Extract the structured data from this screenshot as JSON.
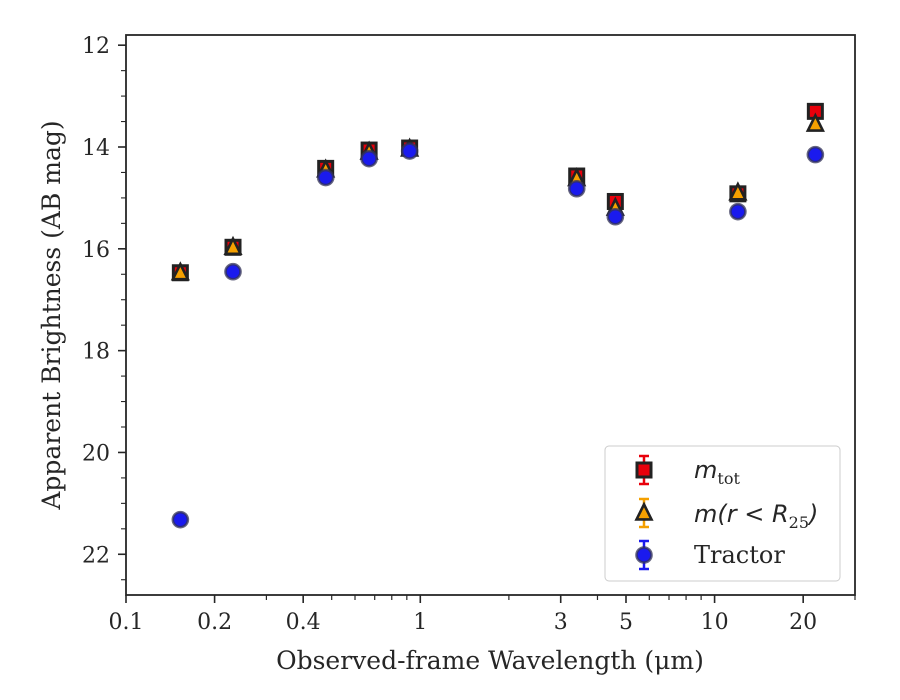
{
  "chart_data": {
    "type": "scatter",
    "xlabel": "Observed-frame Wavelength (μm)",
    "ylabel": "Apparent Brightness (AB mag)",
    "xscale": "log",
    "xlim": [
      0.1,
      30
    ],
    "ylim": [
      22.8,
      11.8
    ],
    "y_inverted": true,
    "x_ticks": [
      0.1,
      0.2,
      0.4,
      1,
      3,
      5,
      10,
      20
    ],
    "x_tick_labels": [
      "0.1",
      "0.2",
      "0.4",
      "1",
      "3",
      "5",
      "10",
      "20"
    ],
    "y_ticks": [
      12,
      14,
      16,
      18,
      20,
      22
    ],
    "y_tick_labels": [
      "12",
      "14",
      "16",
      "18",
      "20",
      "22"
    ],
    "legend_position": "lower-right",
    "series": [
      {
        "name": "m_tot",
        "legend_main": "m",
        "legend_sub": "tot",
        "marker": "square",
        "color": "#e8000b",
        "edge": "#222222",
        "x": [
          0.153,
          0.231,
          0.477,
          0.67,
          0.92,
          3.4,
          4.6,
          12.0,
          22.0
        ],
        "y": [
          16.47,
          15.97,
          14.42,
          14.06,
          14.02,
          14.57,
          15.07,
          14.92,
          13.3
        ]
      },
      {
        "name": "m(r < R25)",
        "legend_main": "m(r < R",
        "legend_sub": "25",
        "legend_end": ")",
        "marker": "triangle",
        "color": "#f5a000",
        "edge": "#222222",
        "x": [
          0.153,
          0.231,
          0.477,
          0.67,
          0.92,
          3.4,
          4.6,
          12.0,
          22.0
        ],
        "y": [
          16.47,
          15.97,
          14.45,
          14.1,
          14.04,
          14.62,
          15.2,
          14.9,
          13.55
        ]
      },
      {
        "name": "Tractor",
        "marker": "circle",
        "color": "#1a1aee",
        "edge": "#333355",
        "x": [
          0.153,
          0.231,
          0.477,
          0.67,
          0.92,
          3.4,
          4.6,
          12.0,
          22.0
        ],
        "y": [
          21.32,
          16.45,
          14.6,
          14.23,
          14.08,
          14.82,
          15.37,
          15.27,
          14.15
        ]
      }
    ]
  }
}
